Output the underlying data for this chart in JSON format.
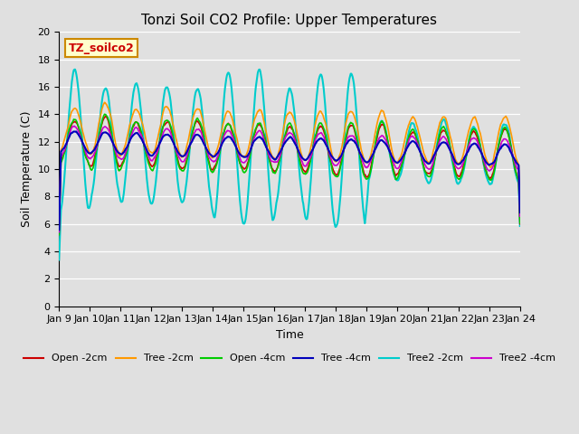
{
  "title": "Tonzi Soil CO2 Profile: Upper Temperatures",
  "xlabel": "Time",
  "ylabel": "Soil Temperature (C)",
  "ylim": [
    0,
    20
  ],
  "yticks": [
    0,
    2,
    4,
    6,
    8,
    10,
    12,
    14,
    16,
    18,
    20
  ],
  "background_color": "#e0e0e0",
  "plot_bg_color": "#e0e0e0",
  "annotation_text": "TZ_soilco2",
  "annotation_color": "#cc0000",
  "annotation_bg": "#ffffcc",
  "annotation_border": "#cc8800",
  "series": {
    "Open -2cm": {
      "color": "#cc0000",
      "lw": 1.2
    },
    "Tree -2cm": {
      "color": "#ff9900",
      "lw": 1.2
    },
    "Open -4cm": {
      "color": "#00cc00",
      "lw": 1.2
    },
    "Tree -4cm": {
      "color": "#0000bb",
      "lw": 1.5
    },
    "Tree2 -2cm": {
      "color": "#00cccc",
      "lw": 1.5
    },
    "Tree2 -4cm": {
      "color": "#cc00cc",
      "lw": 1.2
    }
  },
  "xtick_labels": [
    "Jan 9",
    "Jan 10",
    "Jan 11",
    "Jan 12",
    "Jan 13",
    "Jan 14",
    "Jan 15",
    "Jan 16",
    "Jan 17",
    "Jan 18",
    "Jan 19",
    "Jan 20",
    "Jan 21",
    "Jan 22",
    "Jan 23",
    "Jan 24"
  ],
  "n_days": 15,
  "pts_per_day": 48
}
